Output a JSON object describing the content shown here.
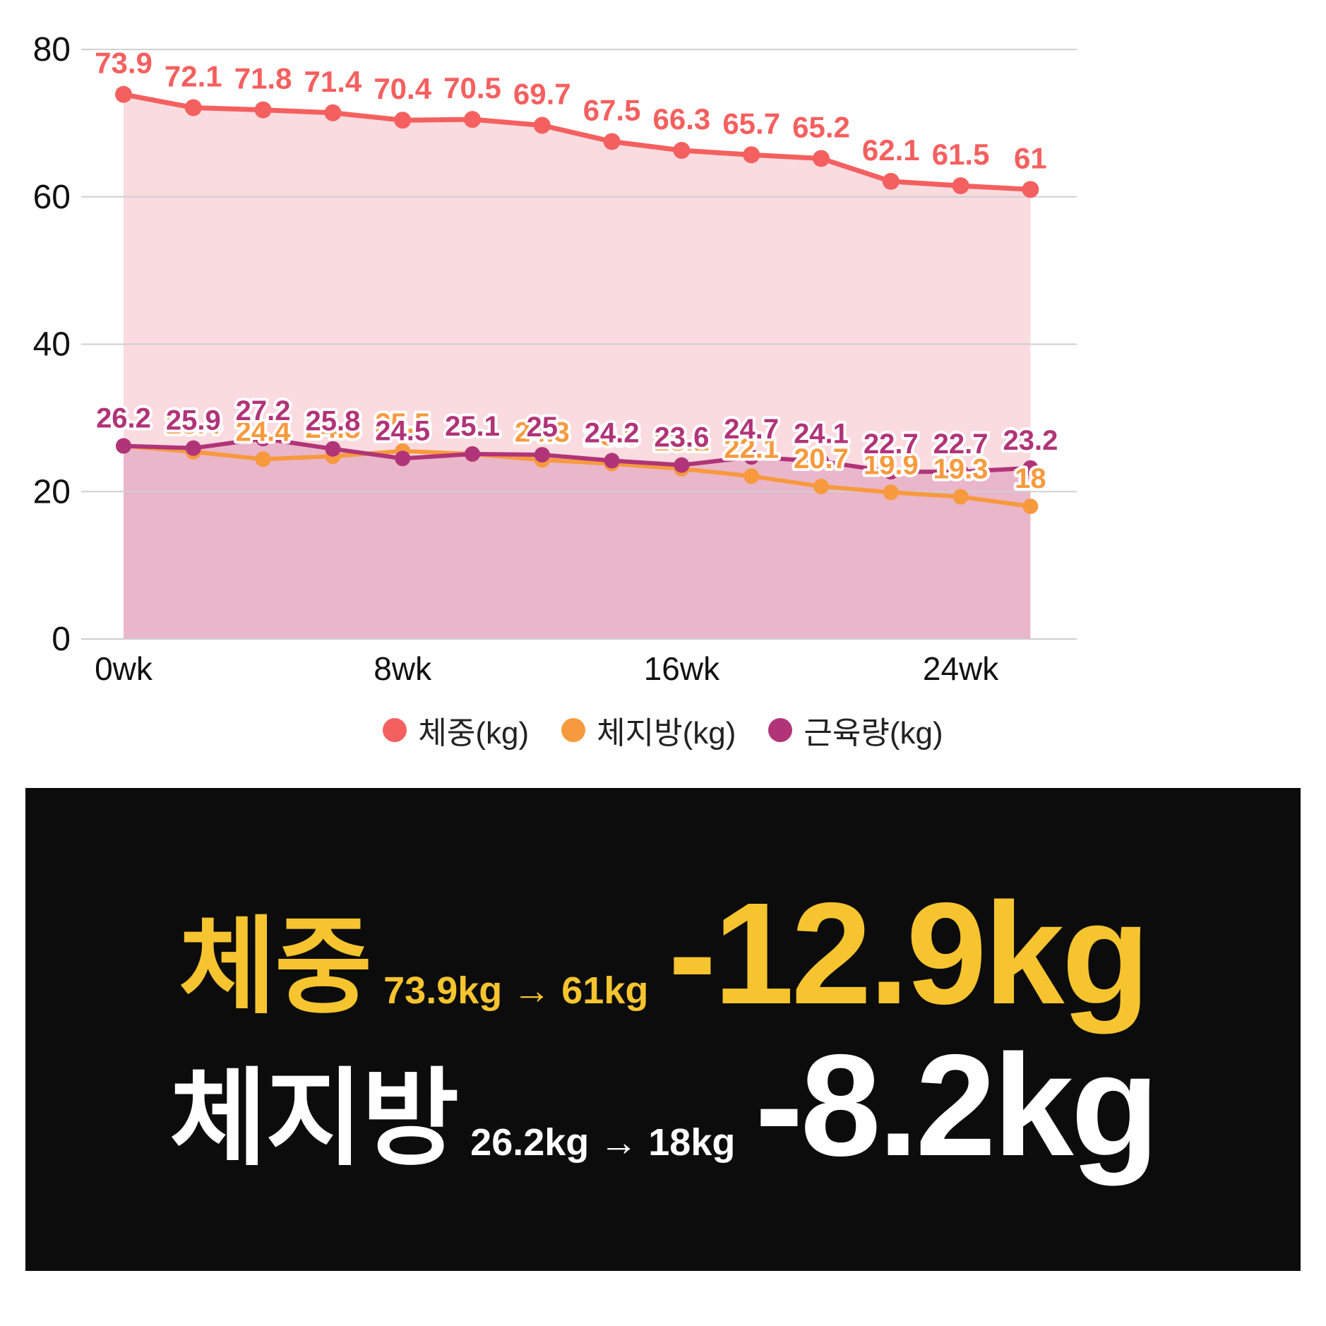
{
  "chart_data": {
    "type": "line",
    "x_unit": "week",
    "x": [
      0,
      2,
      4,
      6,
      8,
      10,
      12,
      14,
      16,
      18,
      20,
      22,
      24,
      26
    ],
    "x_ticks": [
      {
        "index": 0,
        "label": "0wk"
      },
      {
        "index": 4,
        "label": "8wk"
      },
      {
        "index": 8,
        "label": "16wk"
      },
      {
        "index": 12,
        "label": "24wk"
      }
    ],
    "ylim": [
      0,
      80
    ],
    "y_ticks": [
      0,
      20,
      40,
      60,
      80
    ],
    "grid": true,
    "legend_position": "bottom",
    "series": [
      {
        "name": "체중(kg)",
        "color": "#f4605f",
        "fill": "#fadbe0",
        "values": [
          73.9,
          72.1,
          71.8,
          71.4,
          70.4,
          70.5,
          69.7,
          67.5,
          66.3,
          65.7,
          65.2,
          62.1,
          61.5,
          61
        ]
      },
      {
        "name": "체지방(kg)",
        "color": "#f79a3e",
        "fill": "",
        "values": [
          26.2,
          25.4,
          24.4,
          24.8,
          25.5,
          25.1,
          24.3,
          23.8,
          23.1,
          22.1,
          20.7,
          19.9,
          19.3,
          18
        ]
      },
      {
        "name": "근육량(kg)",
        "color": "#b13478",
        "fill": "rgba(177,52,120,0.22)",
        "values": [
          26.2,
          25.9,
          27.2,
          25.8,
          24.5,
          25.1,
          25,
          24.2,
          23.6,
          24.7,
          24.1,
          22.7,
          22.7,
          23.2
        ]
      }
    ]
  },
  "summary": {
    "rows": [
      {
        "label": "체중",
        "range": "73.9kg → 61kg",
        "delta": "-12.9kg",
        "color": "#f6c42e"
      },
      {
        "label": "체지방",
        "range": "26.2kg → 18kg",
        "delta": "-8.2kg",
        "color": "#ffffff"
      }
    ]
  }
}
